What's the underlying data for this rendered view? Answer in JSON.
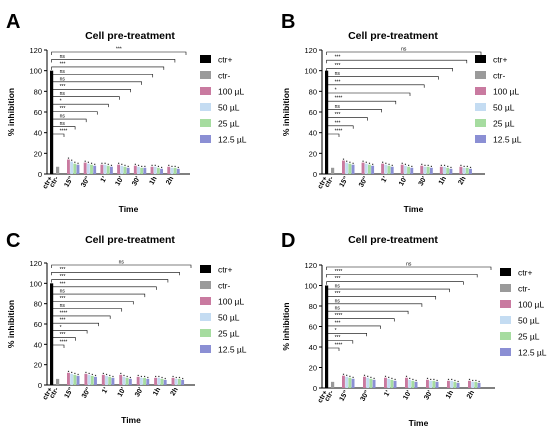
{
  "panel_letters": [
    "A",
    "B",
    "C",
    "D"
  ],
  "colors": {
    "ctr_plus": "#000000",
    "ctr_minus": "#9a9a9a",
    "c100": "#c97aa0",
    "c50": "#c4dcf2",
    "c25": "#a6dca0",
    "c12_5": "#8b8fd4",
    "axis": "#000000",
    "bracket": "#000000"
  },
  "chart_data": [
    {
      "type": "bar",
      "panel": "A",
      "title": "Cell pre-treatment",
      "xlabel": "Time",
      "ylabel": "% inhibition",
      "ylim": [
        0,
        120
      ],
      "yticks": [
        0,
        20,
        40,
        60,
        80,
        100,
        120
      ],
      "controls": [
        {
          "label": "ctr+",
          "value": 100
        },
        {
          "label": "ctr-",
          "value": 7
        }
      ],
      "categories": [
        "15''",
        "30''",
        "1'",
        "10'",
        "30'",
        "1h",
        "2h"
      ],
      "series": [
        {
          "name": "100 µL",
          "values": [
            14,
            11,
            9,
            9,
            8,
            7,
            7
          ]
        },
        {
          "name": "50 µL",
          "values": [
            12,
            10,
            9,
            8,
            7,
            7,
            6
          ]
        },
        {
          "name": "25 µL",
          "values": [
            10,
            9,
            8,
            7,
            6,
            6,
            6
          ]
        },
        {
          "name": "12.5 µL",
          "values": [
            9,
            8,
            7,
            6,
            6,
            5,
            5
          ]
        }
      ],
      "significance": [
        "***",
        "ns",
        "***",
        "ns",
        "ns",
        "***",
        "ns",
        "*",
        "***",
        "ns",
        "ns",
        "****"
      ],
      "legend_position": "right"
    },
    {
      "type": "bar",
      "panel": "B",
      "title": "Cell pre-treatment",
      "xlabel": "Time",
      "ylabel": "% inhibition",
      "ylim": [
        0,
        120
      ],
      "yticks": [
        0,
        20,
        40,
        60,
        80,
        100,
        120
      ],
      "controls": [
        {
          "label": "ctr+",
          "value": 100
        },
        {
          "label": "ctr-",
          "value": 6
        }
      ],
      "categories": [
        "15''",
        "30''",
        "1'",
        "10'",
        "30'",
        "1h",
        "2h"
      ],
      "series": [
        {
          "name": "100 µL",
          "values": [
            13,
            11,
            10,
            9,
            8,
            7,
            7
          ]
        },
        {
          "name": "50 µL",
          "values": [
            11,
            10,
            9,
            8,
            7,
            7,
            6
          ]
        },
        {
          "name": "25 µL",
          "values": [
            10,
            9,
            8,
            7,
            7,
            6,
            6
          ]
        },
        {
          "name": "12.5 µL",
          "values": [
            9,
            8,
            7,
            6,
            6,
            5,
            5
          ]
        }
      ],
      "significance": [
        "ns",
        "***",
        "***",
        "ns",
        "***",
        "*",
        "****",
        "ns",
        "***",
        "***",
        "****"
      ],
      "legend_position": "right"
    },
    {
      "type": "bar",
      "panel": "C",
      "title": "Cell pre-treatment",
      "xlabel": "Time",
      "ylabel": "% inhibition",
      "ylim": [
        0,
        120
      ],
      "yticks": [
        0,
        20,
        40,
        60,
        80,
        100,
        120
      ],
      "controls": [
        {
          "label": "ctr+",
          "value": 100
        },
        {
          "label": "ctr-",
          "value": 6
        }
      ],
      "categories": [
        "15''",
        "30''",
        "1'",
        "10'",
        "30'",
        "1h",
        "2h"
      ],
      "series": [
        {
          "name": "100 µL",
          "values": [
            12,
            11,
            10,
            10,
            8,
            7,
            7
          ]
        },
        {
          "name": "50 µL",
          "values": [
            11,
            10,
            9,
            8,
            7,
            7,
            6
          ]
        },
        {
          "name": "25 µL",
          "values": [
            10,
            9,
            8,
            7,
            7,
            6,
            6
          ]
        },
        {
          "name": "12.5 µL",
          "values": [
            9,
            8,
            7,
            6,
            6,
            5,
            5
          ]
        }
      ],
      "significance": [
        "ns",
        "***",
        "***",
        "***",
        "ns",
        "***",
        "ns",
        "****",
        "***",
        "*",
        "***",
        "****"
      ],
      "legend_position": "right"
    },
    {
      "type": "bar",
      "panel": "D",
      "title": "Cell pre-treatment",
      "xlabel": "Time",
      "ylabel": "% inhibition",
      "ylim": [
        0,
        120
      ],
      "yticks": [
        0,
        20,
        40,
        60,
        80,
        100,
        120
      ],
      "controls": [
        {
          "label": "ctr+",
          "value": 100
        },
        {
          "label": "ctr-",
          "value": 6
        }
      ],
      "categories": [
        "15''",
        "30''",
        "1'",
        "10'",
        "30'",
        "1h",
        "2h"
      ],
      "series": [
        {
          "name": "100 µL",
          "values": [
            12,
            11,
            10,
            10,
            8,
            7,
            7
          ]
        },
        {
          "name": "50 µL",
          "values": [
            11,
            10,
            9,
            8,
            7,
            7,
            6
          ]
        },
        {
          "name": "25 µL",
          "values": [
            10,
            9,
            8,
            7,
            7,
            6,
            6
          ]
        },
        {
          "name": "12.5 µL",
          "values": [
            9,
            8,
            7,
            6,
            6,
            5,
            5
          ]
        }
      ],
      "significance": [
        "ns",
        "****",
        "***",
        "ns",
        "***",
        "ns",
        "ns",
        "****",
        "***",
        "*",
        "***",
        "****"
      ],
      "legend_position": "right"
    }
  ]
}
